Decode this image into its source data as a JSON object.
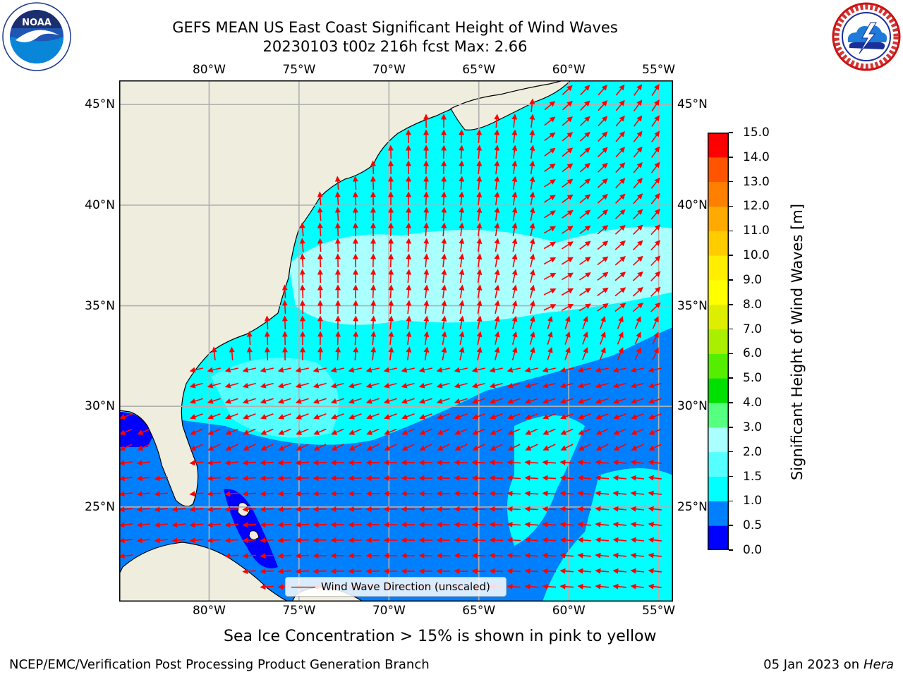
{
  "title": {
    "line1": "GEFS MEAN US East Coast Significant Height of Wind Waves",
    "line2": "20230103 t00z 216h fcst   Max: 2.66"
  },
  "logos": {
    "left": {
      "name": "noaa-logo",
      "text": "NOAA",
      "ring_text": "NATIONAL OCEANIC AND ATMOSPHERIC ADMINISTRATION · U.S. DEPARTMENT OF COMMERCE"
    },
    "right": {
      "name": "nws-logo",
      "ring_text": "NATIONAL WEATHER SERVICE"
    }
  },
  "map": {
    "lon_ticks": [
      "80°W",
      "75°W",
      "70°W",
      "65°W",
      "60°W",
      "55°W"
    ],
    "lat_ticks": [
      "45°N",
      "40°N",
      "35°N",
      "30°N",
      "25°N"
    ],
    "lon_values": [
      -80,
      -75,
      -70,
      -65,
      -60,
      -55
    ],
    "lat_values": [
      45,
      40,
      35,
      30,
      25
    ],
    "extent": {
      "lon": [
        -85,
        -54.2
      ],
      "lat": [
        20.3,
        46.2
      ]
    },
    "land_color": "#efedde",
    "gridlines": true,
    "vector_color": "#ff0000",
    "legend": {
      "label": "Wind Wave Direction (unscaled)",
      "placement": "lower-center"
    }
  },
  "colorbar": {
    "label": "Significant Height of Wind Waves [m]",
    "ticks": [
      "15.0",
      "14.0",
      "13.0",
      "12.0",
      "11.0",
      "10.0",
      "9.0",
      "8.0",
      "7.0",
      "6.0",
      "5.0",
      "4.0",
      "3.0",
      "2.0",
      "1.5",
      "1.0",
      "0.5",
      "0.0"
    ],
    "bounds": [
      0.0,
      0.5,
      1.0,
      1.5,
      2.0,
      3.0,
      4.0,
      5.0,
      6.0,
      7.0,
      8.0,
      9.0,
      10.0,
      11.0,
      12.0,
      13.0,
      14.0,
      15.0
    ],
    "colors": [
      "#0000ff",
      "#0080ff",
      "#00ffff",
      "#55ffff",
      "#aaffff",
      "#55ff80",
      "#00e000",
      "#55ee00",
      "#aaee00",
      "#ddee00",
      "#ffff00",
      "#ffee00",
      "#ffcc00",
      "#ffaa00",
      "#ff8000",
      "#ff5500",
      "#ff0000"
    ]
  },
  "sea_ice_note": "Sea Ice Concentration > 15% is shown in pink to yellow",
  "footer": {
    "left": "NCEP/EMC/Verification Post Processing Product Generation Branch",
    "right_date": "05 Jan 2023 on ",
    "right_host": "Hera"
  }
}
